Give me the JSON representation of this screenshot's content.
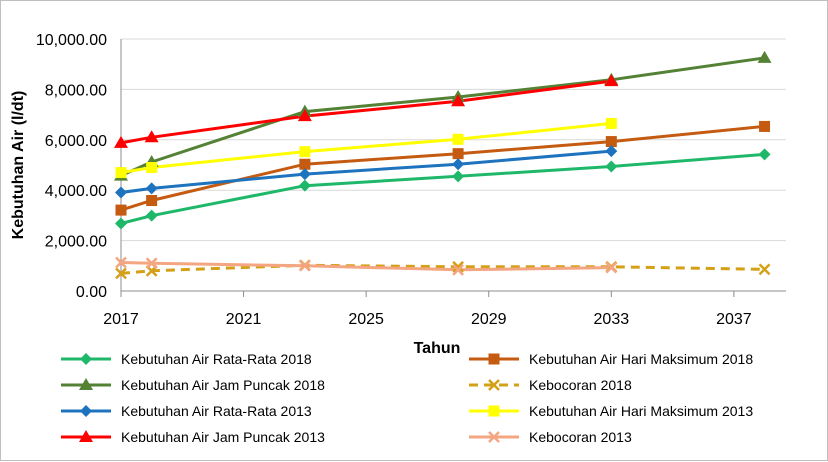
{
  "chart_data": {
    "type": "line",
    "xlabel": "Tahun",
    "ylabel": "Kebutuhan Air (l/dt)",
    "xlim": [
      2017,
      2038.7
    ],
    "ylim": [
      0,
      10000
    ],
    "x_ticks": [
      2017,
      2021,
      2025,
      2029,
      2033,
      2037
    ],
    "x_tick_labels": [
      "2017",
      "2021",
      "2025",
      "2029",
      "2033",
      "2037"
    ],
    "y_ticks": [
      0,
      2000,
      4000,
      6000,
      8000,
      10000
    ],
    "y_tick_labels": [
      "0.00",
      "2,000.00",
      "4,000.00",
      "6,000.00",
      "8,000.00",
      "10,000.00"
    ],
    "grid": "horizontal",
    "legend_position": "bottom",
    "series": [
      {
        "name": "Kebutuhan Air Rata-Rata 2018",
        "color": "#1fb86a",
        "marker": "diamond",
        "dash": "solid",
        "x": [
          2017,
          2018,
          2023,
          2028,
          2033,
          2038
        ],
        "y": [
          2680,
          2990,
          4180,
          4550,
          4940,
          5420
        ]
      },
      {
        "name": "Kebutuhan Air Hari Maksimum 2018",
        "color": "#c55a11",
        "marker": "square",
        "dash": "solid",
        "x": [
          2017,
          2018,
          2023,
          2028,
          2033,
          2038
        ],
        "y": [
          3210,
          3590,
          5030,
          5450,
          5930,
          6530
        ]
      },
      {
        "name": "Kebutuhan Air Jam Puncak 2018",
        "color": "#548235",
        "marker": "triangle",
        "dash": "solid",
        "x": [
          2017,
          2018,
          2023,
          2028,
          2033,
          2038
        ],
        "y": [
          4580,
          5120,
          7120,
          7700,
          8380,
          9250
        ]
      },
      {
        "name": "Kebocoran 2018",
        "color": "#d4a017",
        "marker": "x",
        "dash": "dashed",
        "x": [
          2017,
          2018,
          2023,
          2028,
          2033,
          2038
        ],
        "y": [
          700,
          800,
          1020,
          960,
          960,
          860
        ]
      },
      {
        "name": "Kebutuhan Air Rata-Rata 2013",
        "color": "#1e73be",
        "marker": "diamond",
        "dash": "solid",
        "x": [
          2017,
          2018,
          2023,
          2028,
          2033
        ],
        "y": [
          3910,
          4070,
          4640,
          5030,
          5550
        ]
      },
      {
        "name": "Kebutuhan Air Hari Maksimum 2013",
        "color": "#ffff00",
        "marker": "square",
        "dash": "solid",
        "x": [
          2017,
          2018,
          2023,
          2028,
          2033
        ],
        "y": [
          4700,
          4900,
          5530,
          6020,
          6650
        ]
      },
      {
        "name": "Kebutuhan Air Jam Puncak 2013",
        "color": "#ff0000",
        "marker": "triangle",
        "dash": "solid",
        "x": [
          2017,
          2018,
          2023,
          2028,
          2033
        ],
        "y": [
          5880,
          6100,
          6940,
          7530,
          8330
        ]
      },
      {
        "name": "Kebocoran 2013",
        "color": "#f4a582",
        "marker": "x",
        "dash": "solid",
        "x": [
          2017,
          2018,
          2023,
          2028,
          2033
        ],
        "y": [
          1130,
          1100,
          1000,
          840,
          930
        ]
      }
    ]
  }
}
